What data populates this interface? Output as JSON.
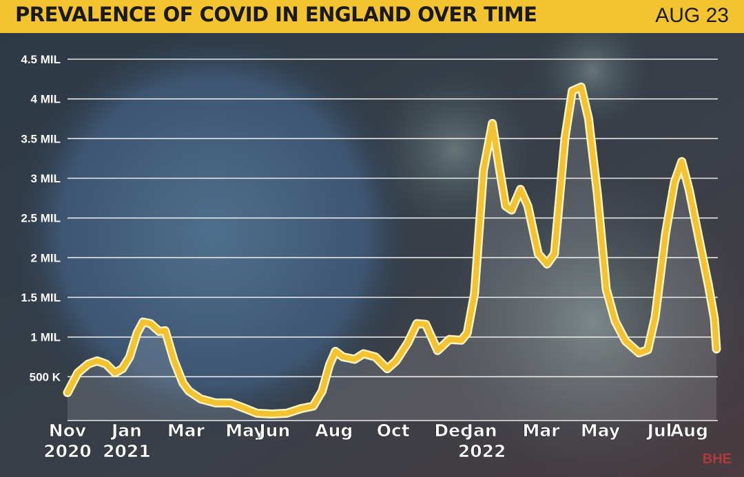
{
  "header": {
    "title": "PREVALENCE OF COVID IN ENGLAND OVER TIME",
    "date": "AUG 23"
  },
  "watermark": "BHE",
  "colors": {
    "header_bg": "#f4c330",
    "line": "#f2c230",
    "line_outline": "#fff3c4",
    "grid": "#e8e8e8",
    "text": "#ffffff"
  },
  "chart_data": {
    "type": "line",
    "title": "PREVALENCE OF COVID IN ENGLAND OVER TIME",
    "xlabel": "",
    "ylabel": "",
    "ylim": [
      0,
      4.5
    ],
    "y_ticks": [
      {
        "value": 0.5,
        "label": "500 K"
      },
      {
        "value": 1.0,
        "label": "1 MIL"
      },
      {
        "value": 1.5,
        "label": "1.5 MIL"
      },
      {
        "value": 2.0,
        "label": "2 MIL"
      },
      {
        "value": 2.5,
        "label": "2.5 MIL"
      },
      {
        "value": 3.0,
        "label": "3 MIL"
      },
      {
        "value": 3.5,
        "label": "3.5 MIL"
      },
      {
        "value": 4.0,
        "label": "4 MIL"
      },
      {
        "value": 4.5,
        "label": "4.5 MIL"
      }
    ],
    "x_ticks": [
      {
        "month": 0,
        "label": "Nov",
        "year": "2020"
      },
      {
        "month": 2,
        "label": "Jan",
        "year": "2021"
      },
      {
        "month": 4,
        "label": "Mar"
      },
      {
        "month": 6,
        "label": "May"
      },
      {
        "month": 7,
        "label": "Jun"
      },
      {
        "month": 9,
        "label": "Aug"
      },
      {
        "month": 11,
        "label": "Oct"
      },
      {
        "month": 13,
        "label": "Dec"
      },
      {
        "month": 14,
        "label": "Jan",
        "year": "2022"
      },
      {
        "month": 16,
        "label": "Mar"
      },
      {
        "month": 18,
        "label": "May"
      },
      {
        "month": 20,
        "label": "Jul"
      },
      {
        "month": 21,
        "label": "Aug"
      }
    ],
    "grid": true,
    "series": [
      {
        "values": [
          [
            0.0,
            0.3
          ],
          [
            0.35,
            0.55
          ],
          [
            0.7,
            0.66
          ],
          [
            1.0,
            0.7
          ],
          [
            1.3,
            0.66
          ],
          [
            1.6,
            0.55
          ],
          [
            1.85,
            0.6
          ],
          [
            2.1,
            0.75
          ],
          [
            2.35,
            1.05
          ],
          [
            2.55,
            1.19
          ],
          [
            2.8,
            1.17
          ],
          [
            3.1,
            1.07
          ],
          [
            3.3,
            1.08
          ],
          [
            3.6,
            0.7
          ],
          [
            3.9,
            0.42
          ],
          [
            4.1,
            0.32
          ],
          [
            4.5,
            0.22
          ],
          [
            5.0,
            0.17
          ],
          [
            5.5,
            0.17
          ],
          [
            6.0,
            0.1
          ],
          [
            6.4,
            0.04
          ],
          [
            6.9,
            0.03
          ],
          [
            7.4,
            0.04
          ],
          [
            7.9,
            0.1
          ],
          [
            8.3,
            0.13
          ],
          [
            8.6,
            0.32
          ],
          [
            8.85,
            0.65
          ],
          [
            9.05,
            0.82
          ],
          [
            9.3,
            0.75
          ],
          [
            9.7,
            0.72
          ],
          [
            10.0,
            0.79
          ],
          [
            10.4,
            0.75
          ],
          [
            10.8,
            0.6
          ],
          [
            11.1,
            0.7
          ],
          [
            11.5,
            0.93
          ],
          [
            11.8,
            1.17
          ],
          [
            12.1,
            1.16
          ],
          [
            12.5,
            0.83
          ],
          [
            12.9,
            0.97
          ],
          [
            13.3,
            0.96
          ],
          [
            13.5,
            1.05
          ],
          [
            13.75,
            1.55
          ],
          [
            14.05,
            3.1
          ],
          [
            14.35,
            3.69
          ],
          [
            14.6,
            3.1
          ],
          [
            14.8,
            2.65
          ],
          [
            15.0,
            2.6
          ],
          [
            15.3,
            2.86
          ],
          [
            15.55,
            2.65
          ],
          [
            15.9,
            2.05
          ],
          [
            16.2,
            1.92
          ],
          [
            16.45,
            2.05
          ],
          [
            16.8,
            3.5
          ],
          [
            17.05,
            4.1
          ],
          [
            17.35,
            4.15
          ],
          [
            17.6,
            3.75
          ],
          [
            17.9,
            2.8
          ],
          [
            18.2,
            1.6
          ],
          [
            18.5,
            1.2
          ],
          [
            18.85,
            0.95
          ],
          [
            19.3,
            0.8
          ],
          [
            19.6,
            0.84
          ],
          [
            19.85,
            1.25
          ],
          [
            20.2,
            2.3
          ],
          [
            20.5,
            2.95
          ],
          [
            20.75,
            3.21
          ],
          [
            21.0,
            2.85
          ],
          [
            21.35,
            2.2
          ],
          [
            21.65,
            1.65
          ],
          [
            21.85,
            1.23
          ],
          [
            21.92,
            0.85
          ]
        ]
      }
    ]
  }
}
